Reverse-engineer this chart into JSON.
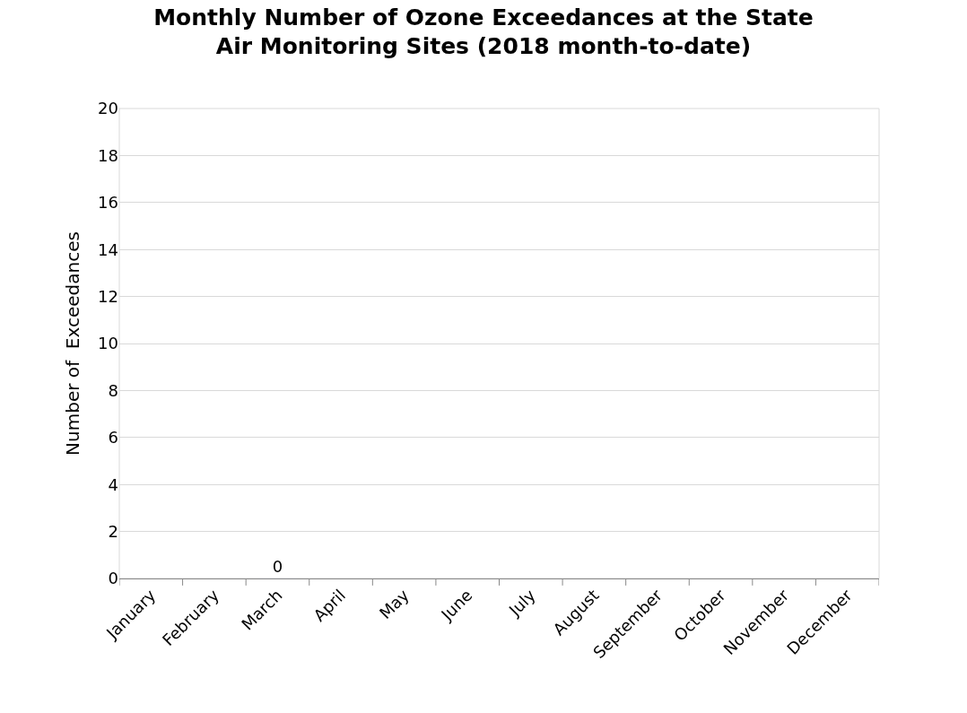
{
  "chart_data": {
    "type": "bar",
    "title": "Monthly Number of Ozone Exceedances at the State Air Monitoring Sites (2018 month-to-date)",
    "ylabel": "Number of  Exceedances",
    "categories": [
      "January",
      "February",
      "March",
      "April",
      "May",
      "June",
      "July",
      "August",
      "September",
      "October",
      "November",
      "December"
    ],
    "values": [
      null,
      null,
      0,
      null,
      null,
      null,
      null,
      null,
      null,
      null,
      null,
      null
    ],
    "value_labels": [
      null,
      null,
      "0",
      null,
      null,
      null,
      null,
      null,
      null,
      null,
      null,
      null
    ],
    "ylim": [
      0,
      20
    ],
    "yticks": [
      0,
      2,
      4,
      6,
      8,
      10,
      12,
      14,
      16,
      18,
      20
    ],
    "grid": "y",
    "legend": false
  }
}
